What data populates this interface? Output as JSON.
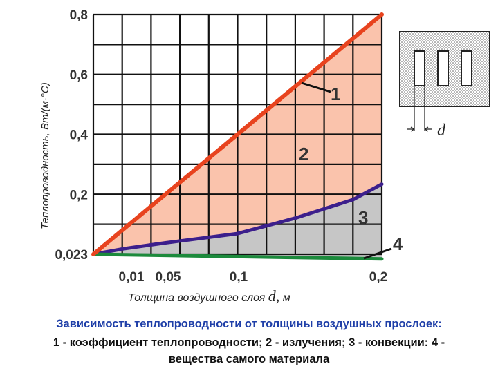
{
  "chart_data": {
    "type": "line",
    "ylabel": "Теплопроводность, Вт",
    "ylabel_unit": "/(м·°С)",
    "xlabel": "Толщина воздушного слоя",
    "xlabel_var": "d,",
    "xlabel_unit": "м",
    "x_ticks": [
      "0,01",
      "0,05",
      "0,1",
      "0,2"
    ],
    "y_ticks": [
      "0,023",
      "0,2",
      "0,4",
      "0,6",
      "0,8"
    ],
    "ylim": [
      0.023,
      0.8
    ],
    "grid": true,
    "series": [
      {
        "name": "1",
        "color": "#e8431e",
        "fill": "#fac3ac",
        "points": [
          [
            0,
            0.023
          ],
          [
            0.2,
            0.8
          ]
        ]
      },
      {
        "name": "3",
        "color": "#3c1f8c",
        "fill": "#c6c6c6",
        "points": [
          [
            0,
            0.023
          ],
          [
            0.02,
            0.04
          ],
          [
            0.05,
            0.06
          ],
          [
            0.1,
            0.09
          ],
          [
            0.14,
            0.14
          ],
          [
            0.18,
            0.2
          ],
          [
            0.2,
            0.25
          ]
        ]
      },
      {
        "name": "4",
        "color": "#1c8a3c",
        "points": [
          [
            0,
            0.023
          ],
          [
            0.2,
            0.008
          ]
        ]
      }
    ],
    "region_labels": [
      "1",
      "2",
      "3",
      "4"
    ],
    "inset_label": "d"
  },
  "caption": {
    "title": "Зависимость теплопроводности от толщины воздушных прослоек:",
    "line1": "1 - коэффициент теплопроводности; 2 - излучения; 3 - конвекции: 4 -",
    "line2": "вещества самого материала"
  }
}
